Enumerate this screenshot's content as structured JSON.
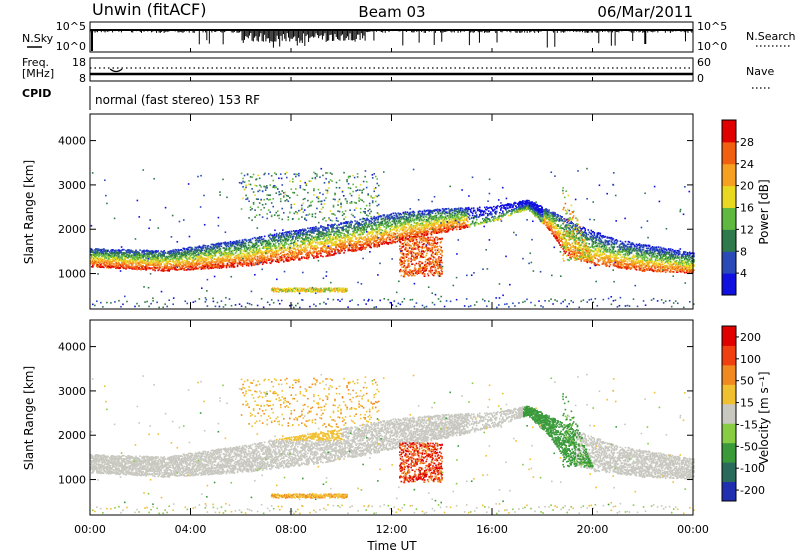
{
  "header": {
    "title_left": "Unwin (fitACF)",
    "title_center": "Beam 03",
    "title_right": "06/Mar/2011"
  },
  "aux_panels": {
    "nsky_label": "N.Sky",
    "nsky_ticks": [
      "10^5",
      "10^0"
    ],
    "nsearch_label": "N.Search",
    "nsearch_ticks": [
      "10^5",
      "10^0"
    ],
    "freq_label_1": "Freq.",
    "freq_label_2": "[MHz]",
    "freq_ticks": [
      "18",
      "8"
    ],
    "nave_label": "Nave",
    "nave_ticks": [
      "60",
      "0"
    ],
    "cpid_label": "CPID",
    "cpid_text": "normal (fast stereo) 153 RF"
  },
  "chart_data": [
    {
      "type": "heatmap",
      "name": "power",
      "ylabel": "Slant Range [km]",
      "xlabel": "",
      "ylim": [
        200,
        4600
      ],
      "xlim": [
        0,
        24
      ],
      "yticks": [
        1000,
        2000,
        3000,
        4000
      ],
      "ytick_labels": [
        "1000",
        "2000",
        "3000",
        "4000"
      ],
      "colorbar_label": "Power [dB]",
      "colorbar_range": [
        0,
        32
      ],
      "colorbar_ticks": [
        "4",
        "8",
        "12",
        "16",
        "20",
        "24",
        "28"
      ],
      "colorbar_colors": [
        "#1010e0",
        "#2a4ab8",
        "#2f7a4a",
        "#5fb840",
        "#e8d820",
        "#f5a020",
        "#f06010",
        "#e00000"
      ]
    },
    {
      "type": "heatmap",
      "name": "velocity",
      "ylabel": "Slant Range [km]",
      "xlabel": "Time UT",
      "ylim": [
        200,
        4600
      ],
      "xlim": [
        0,
        24
      ],
      "yticks": [
        1000,
        2000,
        3000,
        4000
      ],
      "ytick_labels": [
        "1000",
        "2000",
        "3000",
        "4000"
      ],
      "xtick_labels": [
        "00:00",
        "04:00",
        "08:00",
        "12:00",
        "16:00",
        "20:00",
        "00:00"
      ],
      "colorbar_label": "Velocity [m s⁻¹]",
      "colorbar_ticks": [
        "200",
        "100",
        "50",
        "15",
        "-15",
        "-50",
        "-100",
        "-200"
      ],
      "colorbar_colors": [
        "#1f2fb0",
        "#2a6a5a",
        "#3a9a3a",
        "#88cc44",
        "#c8c8c0",
        "#f0c030",
        "#f08a20",
        "#f04010",
        "#e00000"
      ]
    }
  ]
}
